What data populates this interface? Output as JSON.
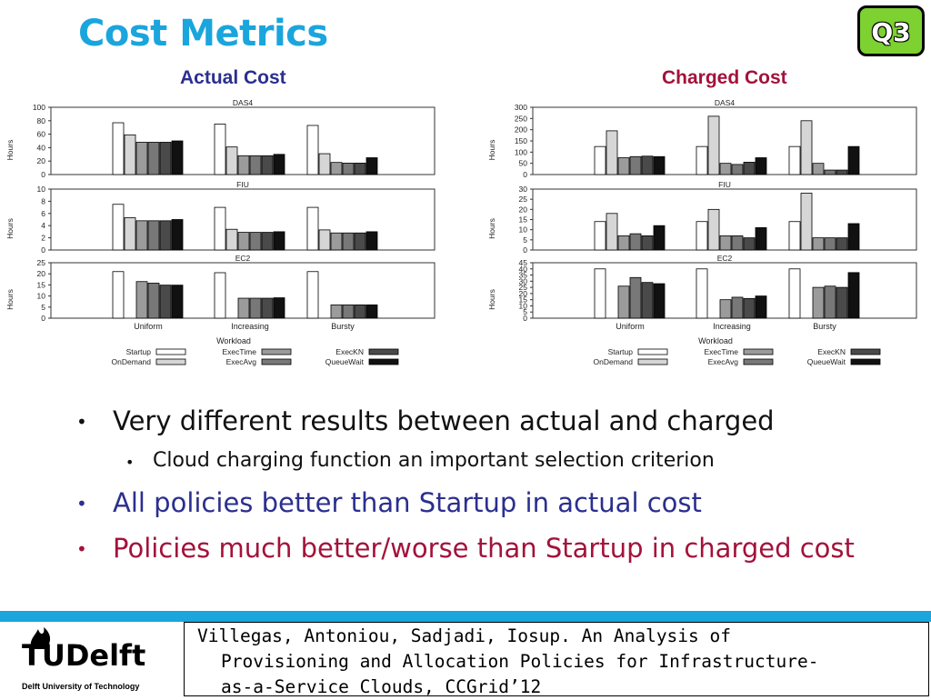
{
  "slide": {
    "title": "Cost Metrics",
    "badge": "Q3",
    "bullets": [
      {
        "text": "Very different results between actual and charged",
        "level": 1,
        "color": "#111111"
      },
      {
        "text": "Cloud charging function an important selection criterion",
        "level": 2,
        "color": "#111111"
      },
      {
        "text": "All policies better than Startup in actual cost",
        "level": 1,
        "color": "#2b2f8f"
      },
      {
        "text": "Policies much better/worse than Startup in charged cost",
        "level": 1,
        "color": "#a3123a"
      }
    ],
    "citation": {
      "line1": "Villegas, Antoniou, Sadjadi, Iosup. An Analysis of",
      "line2": "Provisioning and Allocation Policies for Infrastructure-",
      "line3": "as-a-Service Clouds, CCGrid’12"
    },
    "logo": {
      "text": "TUDelft",
      "subtitle": "Delft University of Technology"
    },
    "colors": {
      "title": "#1aa5dd",
      "accent_bar": "#1aa5dd",
      "badge": "#7dd130"
    }
  },
  "chart_data": [
    {
      "type": "bar",
      "title": "Actual Cost",
      "ylabel": "Hours",
      "xlabel": "Workload",
      "categories": [
        "Uniform",
        "Increasing",
        "Bursty"
      ],
      "series_names": [
        "Startup",
        "OnDemand",
        "ExecTime",
        "ExecAvg",
        "ExecKN",
        "QueueWait"
      ],
      "series_colors": [
        "#ffffff",
        "#d6d6d6",
        "#9b9b9b",
        "#787878",
        "#4a4a4a",
        "#111111"
      ],
      "legend_position": "bottom",
      "subplots": [
        {
          "title": "DAS4",
          "ylim": [
            0,
            100
          ],
          "yticks": [
            0,
            20,
            40,
            60,
            80,
            100
          ],
          "values": [
            [
              77,
              59,
              48,
              48,
              48,
              50
            ],
            [
              75,
              41,
              28,
              28,
              28,
              30
            ],
            [
              73,
              31,
              18,
              17,
              17,
              25
            ]
          ]
        },
        {
          "title": "FIU",
          "ylim": [
            0,
            10
          ],
          "yticks": [
            0,
            2,
            4,
            6,
            8,
            10
          ],
          "values": [
            [
              7.5,
              5.3,
              4.8,
              4.8,
              4.8,
              5.0
            ],
            [
              7.0,
              3.4,
              2.9,
              2.9,
              2.9,
              3.0
            ],
            [
              7.0,
              3.3,
              2.8,
              2.8,
              2.8,
              3.0
            ]
          ]
        },
        {
          "title": "EC2",
          "ylim": [
            0,
            25
          ],
          "yticks": [
            0,
            5,
            10,
            15,
            20,
            25
          ],
          "values": [
            [
              21,
              null,
              16.5,
              15.8,
              14.9,
              14.9
            ],
            [
              20.5,
              null,
              9,
              9,
              9,
              9.2
            ],
            [
              21,
              null,
              6,
              6,
              6,
              6
            ]
          ]
        }
      ]
    },
    {
      "type": "bar",
      "title": "Charged Cost",
      "ylabel": "Hours",
      "xlabel": "Workload",
      "categories": [
        "Uniform",
        "Increasing",
        "Bursty"
      ],
      "series_names": [
        "Startup",
        "OnDemand",
        "ExecTime",
        "ExecAvg",
        "ExecKN",
        "QueueWait"
      ],
      "series_colors": [
        "#ffffff",
        "#d6d6d6",
        "#9b9b9b",
        "#787878",
        "#4a4a4a",
        "#111111"
      ],
      "legend_position": "bottom",
      "subplots": [
        {
          "title": "DAS4",
          "ylim": [
            0,
            300
          ],
          "yticks": [
            0,
            50,
            100,
            150,
            200,
            250,
            300
          ],
          "values": [
            [
              125,
              195,
              75,
              80,
              82,
              80
            ],
            [
              125,
              260,
              50,
              45,
              55,
              75
            ],
            [
              125,
              240,
              50,
              20,
              20,
              125
            ]
          ]
        },
        {
          "title": "FIU",
          "ylim": [
            0,
            30
          ],
          "yticks": [
            0,
            5,
            10,
            15,
            20,
            25,
            30
          ],
          "values": [
            [
              14,
              18,
              7,
              8,
              7,
              12
            ],
            [
              14,
              20,
              7,
              7,
              6,
              11
            ],
            [
              14,
              28,
              6,
              6,
              6,
              13
            ]
          ]
        },
        {
          "title": "EC2",
          "ylim": [
            0,
            45
          ],
          "yticks": [
            0,
            5,
            10,
            15,
            20,
            25,
            30,
            35,
            40,
            45
          ],
          "values": [
            [
              40,
              null,
              26,
              33,
              29,
              28
            ],
            [
              40,
              null,
              15,
              17,
              16,
              18
            ],
            [
              40,
              null,
              25,
              26,
              25,
              37
            ]
          ]
        }
      ]
    }
  ]
}
